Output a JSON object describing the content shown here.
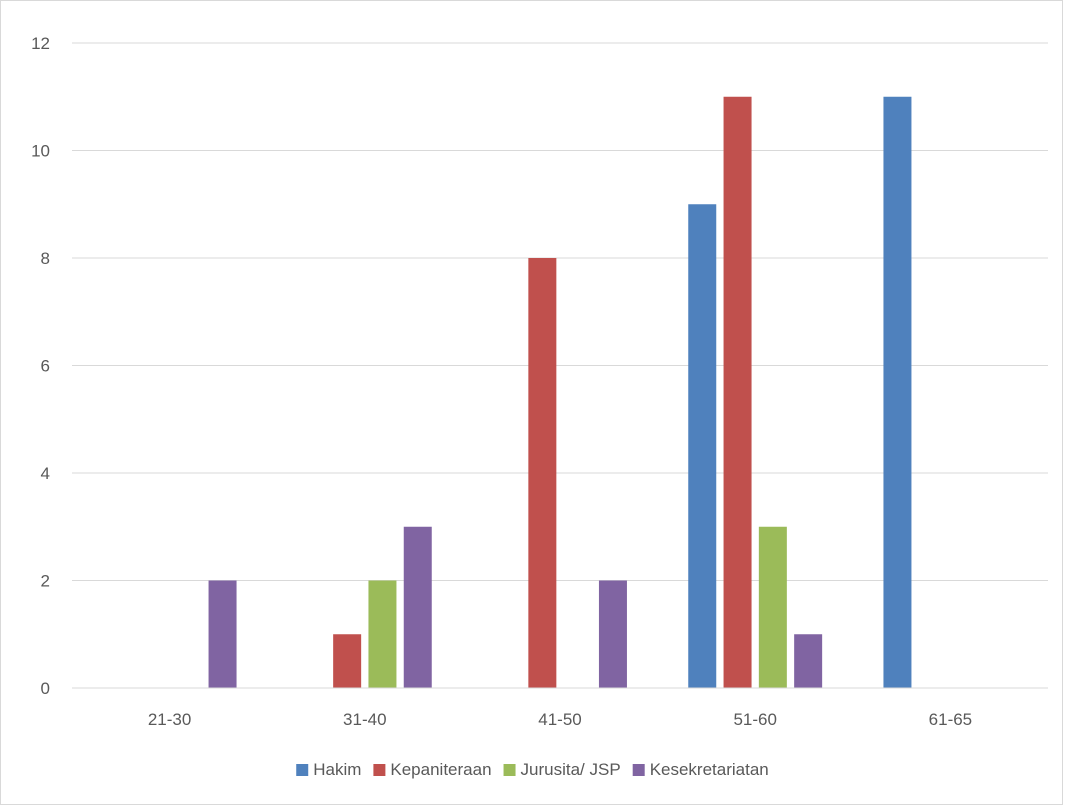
{
  "chart_data": {
    "type": "bar",
    "categories": [
      "21-30",
      "31-40",
      "41-50",
      "51-60",
      "61-65"
    ],
    "series": [
      {
        "name": "Hakim",
        "values": [
          0,
          0,
          0,
          9,
          11
        ],
        "color": "#4f81bd"
      },
      {
        "name": "Kepaniteraan",
        "values": [
          0,
          1,
          8,
          11,
          0
        ],
        "color": "#c0504d"
      },
      {
        "name": "Jurusita/ JSP",
        "values": [
          0,
          2,
          0,
          3,
          0
        ],
        "color": "#9bbb59"
      },
      {
        "name": "Kesekretariatan",
        "values": [
          2,
          3,
          2,
          1,
          0
        ],
        "color": "#8064a2"
      }
    ],
    "ylim": [
      0,
      12
    ],
    "yticks": [
      0,
      2,
      4,
      6,
      8,
      10,
      12
    ],
    "grid": true,
    "legend": "bottom"
  }
}
